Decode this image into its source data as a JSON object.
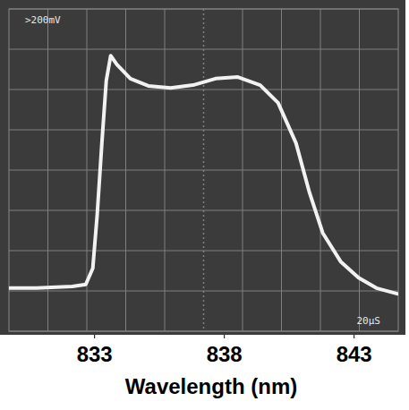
{
  "chart_data": {
    "type": "line",
    "x_label": "Wavelength (nm)",
    "annotations": [
      ">200mV",
      "20μS"
    ],
    "x": [
      829.72,
      830.76,
      832.14,
      832.66,
      832.93,
      833.1,
      833.28,
      833.45,
      833.62,
      833.86,
      834.38,
      835.07,
      835.93,
      836.79,
      837.66,
      838.52,
      839.38,
      840.07,
      840.76,
      841.28,
      841.79,
      842.48,
      843.17,
      843.86,
      844.66
    ],
    "values": [
      1.07,
      1.07,
      1.11,
      1.16,
      1.56,
      2.89,
      4.67,
      6.22,
      6.84,
      6.62,
      6.27,
      6.09,
      6.04,
      6.11,
      6.27,
      6.31,
      6.11,
      5.67,
      4.67,
      3.44,
      2.44,
      1.73,
      1.33,
      1.07,
      0.93
    ],
    "color": "#f2f2f2",
    "xlim": [
      829.7,
      844.7
    ],
    "ylim": [
      0,
      8
    ],
    "xticks": [
      833,
      838,
      843
    ],
    "yticks": [
      0,
      1,
      2,
      3,
      4,
      5,
      6,
      7,
      8
    ],
    "grid": true,
    "tick_labels": "x"
  }
}
